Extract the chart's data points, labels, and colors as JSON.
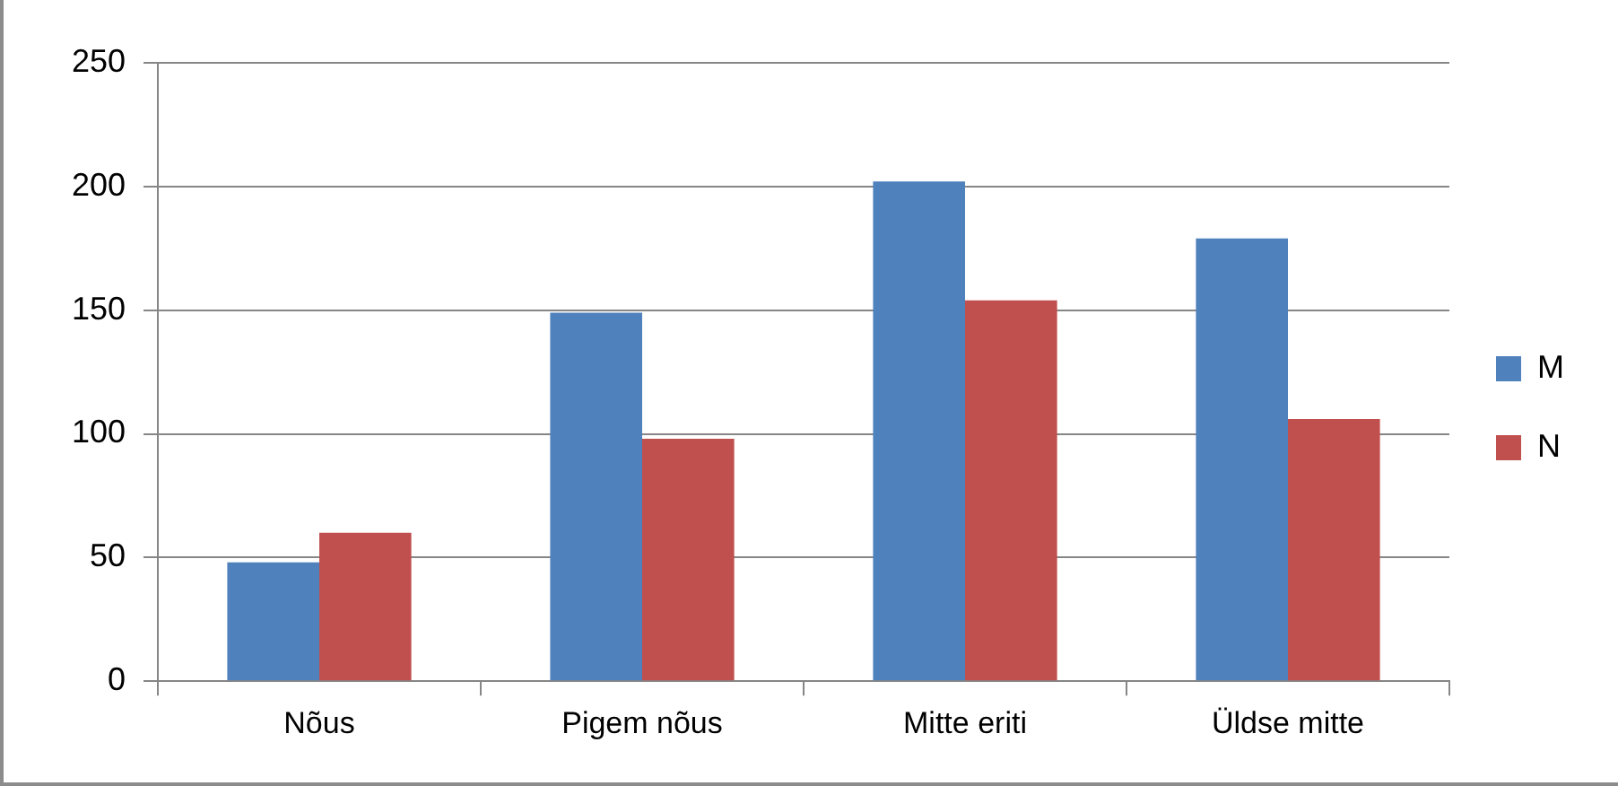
{
  "chart_data": {
    "type": "bar",
    "categories": [
      "Nõus",
      "Pigem nõus",
      "Mitte eriti",
      "Üldse mitte"
    ],
    "series": [
      {
        "name": "M",
        "color": "#4f81bd",
        "values": [
          48,
          149,
          202,
          179
        ]
      },
      {
        "name": "N",
        "color": "#c0504d",
        "values": [
          60,
          98,
          154,
          106
        ]
      }
    ],
    "ylim": [
      0,
      250
    ],
    "yticks": [
      0,
      50,
      100,
      150,
      200,
      250
    ],
    "grid": "y",
    "legend": "right"
  }
}
